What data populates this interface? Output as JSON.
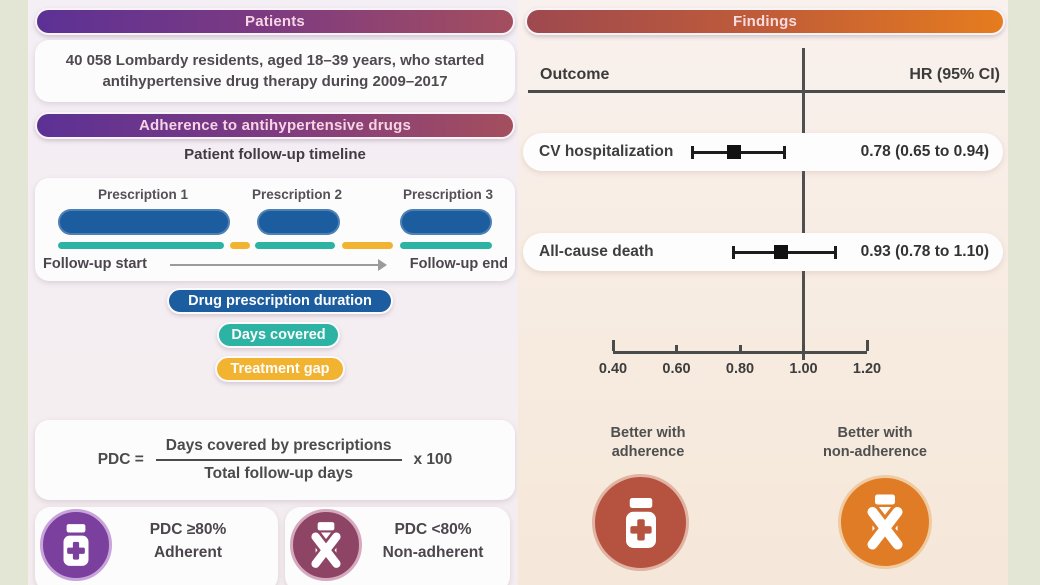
{
  "left_panel": {
    "patients_header": "Patients",
    "patients_text": "40 058 Lombardy residents, aged 18–39 years, who started antihypertensive drug therapy during 2009–2017",
    "adherence_header": "Adherence to antihypertensive drugs",
    "timeline_title": "Patient follow-up timeline",
    "timeline": {
      "prescriptions": [
        "Prescription 1",
        "Prescription 2",
        "Prescription 3"
      ],
      "followup_start": "Follow-up start",
      "followup_end": "Follow-up end"
    },
    "legend": [
      {
        "label": "Drug prescription duration",
        "color": "#1c5d9f"
      },
      {
        "label": "Days covered",
        "color": "#2cb3a4"
      },
      {
        "label": "Treatment gap",
        "color": "#f2b331"
      }
    ],
    "formula": {
      "lhs": "PDC =",
      "numerator": "Days covered by prescriptions",
      "denominator": "Total follow-up days",
      "multiplier": "x 100"
    },
    "adherent": {
      "line1": "PDC ≥80%",
      "line2": "Adherent",
      "icon": "pill-bottle-plus-icon",
      "circle_color": "#7b3f9e"
    },
    "non_adherent": {
      "line1": "PDC <80%",
      "line2": "Non-adherent",
      "icon": "pill-bottle-x-icon",
      "circle_color": "#8e4565"
    }
  },
  "right_panel": {
    "findings_header": "Findings",
    "outcome_col": "Outcome",
    "hr_col": "HR (95% CI)",
    "better_left": [
      "Better with",
      "adherence"
    ],
    "better_left_icon": "pill-bottle-plus-icon",
    "better_left_color": "#b65340",
    "better_right": [
      "Better with",
      "non-adherence"
    ],
    "better_right_icon": "pill-bottle-x-icon",
    "better_right_color": "#e07c26"
  },
  "chart_data": {
    "type": "forest",
    "title": "Findings",
    "outcomes": [
      {
        "label": "CV hospitalization",
        "hr": 0.78,
        "ci_low": 0.65,
        "ci_high": 0.94,
        "text": "0.78 (0.65 to 0.94)"
      },
      {
        "label": "All-cause death",
        "hr": 0.93,
        "ci_low": 0.78,
        "ci_high": 1.1,
        "text": "0.93 (0.78 to 1.10)"
      }
    ],
    "axis": {
      "range": [
        0.4,
        1.2
      ],
      "ticks": [
        0.4,
        0.6,
        0.8,
        1.0,
        1.2
      ],
      "tick_labels": [
        "0.40",
        "0.60",
        "0.80",
        "1.00",
        "1.20"
      ],
      "ref_line": 1.0
    },
    "legend_position": "none",
    "grid": false
  },
  "colors": {
    "header_gradient_left": [
      "#5c3195",
      "#a44e5e"
    ],
    "header_gradient_right": [
      "#9e4950",
      "#e67c1e"
    ],
    "blue": "#1c5d9f",
    "teal": "#2cb3a4",
    "yellow": "#f2b331",
    "purple_circle": "#7b3f9e",
    "maroon_circle": "#8e4565",
    "terracotta_circle": "#b65340",
    "orange_circle": "#e07c26",
    "outer_background": "#e3e6d4"
  }
}
